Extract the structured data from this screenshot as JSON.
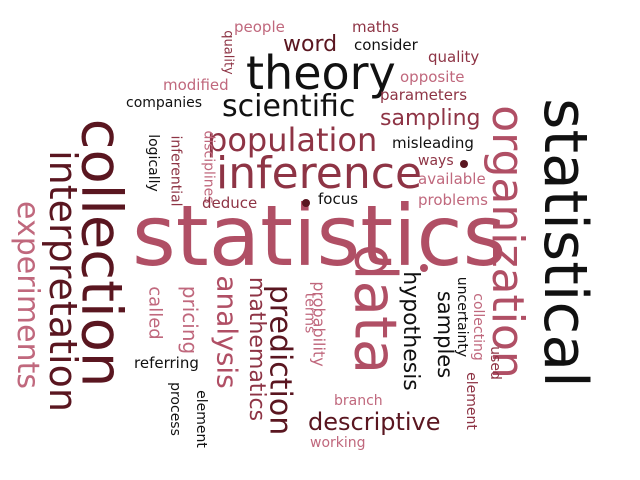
{
  "colors": {
    "black": "#111111",
    "dark": "#5a1620",
    "mid": "#8e3445",
    "rose": "#b04f65",
    "light": "#c0687d"
  },
  "words": [
    {
      "id": "statistics",
      "text": "statistics",
      "color": "rose"
    },
    {
      "id": "statistical",
      "text": "statistical",
      "color": "black"
    },
    {
      "id": "collection",
      "text": "collection",
      "color": "dark"
    },
    {
      "id": "organization",
      "text": "organization",
      "color": "rose"
    },
    {
      "id": "data",
      "text": "data",
      "color": "rose"
    },
    {
      "id": "interpretation",
      "text": "interpretation",
      "color": "dark"
    },
    {
      "id": "theory",
      "text": "theory",
      "color": "black"
    },
    {
      "id": "inference",
      "text": "inference",
      "color": "mid"
    },
    {
      "id": "population",
      "text": "population",
      "color": "mid"
    },
    {
      "id": "scientific",
      "text": "scientific",
      "color": "black"
    },
    {
      "id": "experiments",
      "text": "experiments",
      "color": "light"
    },
    {
      "id": "prediction",
      "text": "prediction",
      "color": "dark"
    },
    {
      "id": "analysis",
      "text": "analysis",
      "color": "rose"
    },
    {
      "id": "mathematics",
      "text": "mathematics",
      "color": "mid"
    },
    {
      "id": "hypothesis",
      "text": "hypothesis",
      "color": "black"
    },
    {
      "id": "samples",
      "text": "samples",
      "color": "black"
    },
    {
      "id": "descriptive",
      "text": "descriptive",
      "color": "dark"
    },
    {
      "id": "sampling",
      "text": "sampling",
      "color": "mid"
    },
    {
      "id": "word",
      "text": "word",
      "color": "dark"
    },
    {
      "id": "probability",
      "text": "probability",
      "color": "light"
    },
    {
      "id": "pricing",
      "text": "pricing",
      "color": "light"
    },
    {
      "id": "called",
      "text": "called",
      "color": "light"
    },
    {
      "id": "quality_top",
      "text": "quality",
      "color": "mid"
    },
    {
      "id": "quality_side",
      "text": "quality",
      "color": "mid"
    },
    {
      "id": "people",
      "text": "people",
      "color": "light"
    },
    {
      "id": "maths",
      "text": "maths",
      "color": "mid"
    },
    {
      "id": "consider",
      "text": "consider",
      "color": "black"
    },
    {
      "id": "opposite",
      "text": "opposite",
      "color": "light"
    },
    {
      "id": "modified",
      "text": "modified",
      "color": "light"
    },
    {
      "id": "parameters",
      "text": "parameters",
      "color": "mid"
    },
    {
      "id": "companies",
      "text": "companies",
      "color": "black"
    },
    {
      "id": "disciplines",
      "text": "disciplines",
      "color": "light"
    },
    {
      "id": "inferential",
      "text": "inferential",
      "color": "mid"
    },
    {
      "id": "logically",
      "text": "logically",
      "color": "black"
    },
    {
      "id": "misleading",
      "text": "misleading",
      "color": "black"
    },
    {
      "id": "ways",
      "text": "ways",
      "color": "mid"
    },
    {
      "id": "available",
      "text": "available",
      "color": "light"
    },
    {
      "id": "problems",
      "text": "problems",
      "color": "light"
    },
    {
      "id": "deduce",
      "text": "deduce",
      "color": "mid"
    },
    {
      "id": "focus",
      "text": "focus",
      "color": "black"
    },
    {
      "id": "terms",
      "text": "terms",
      "color": "light"
    },
    {
      "id": "uncertainty",
      "text": "uncertainty",
      "color": "black"
    },
    {
      "id": "collecting",
      "text": "collecting",
      "color": "light"
    },
    {
      "id": "element_right",
      "text": "element",
      "color": "mid"
    },
    {
      "id": "used",
      "text": "used",
      "color": "mid"
    },
    {
      "id": "referring",
      "text": "referring",
      "color": "black"
    },
    {
      "id": "process",
      "text": "process",
      "color": "black"
    },
    {
      "id": "element_bottom",
      "text": "element",
      "color": "black"
    },
    {
      "id": "branch",
      "text": "branch",
      "color": "light"
    },
    {
      "id": "working",
      "text": "working",
      "color": "light"
    }
  ]
}
